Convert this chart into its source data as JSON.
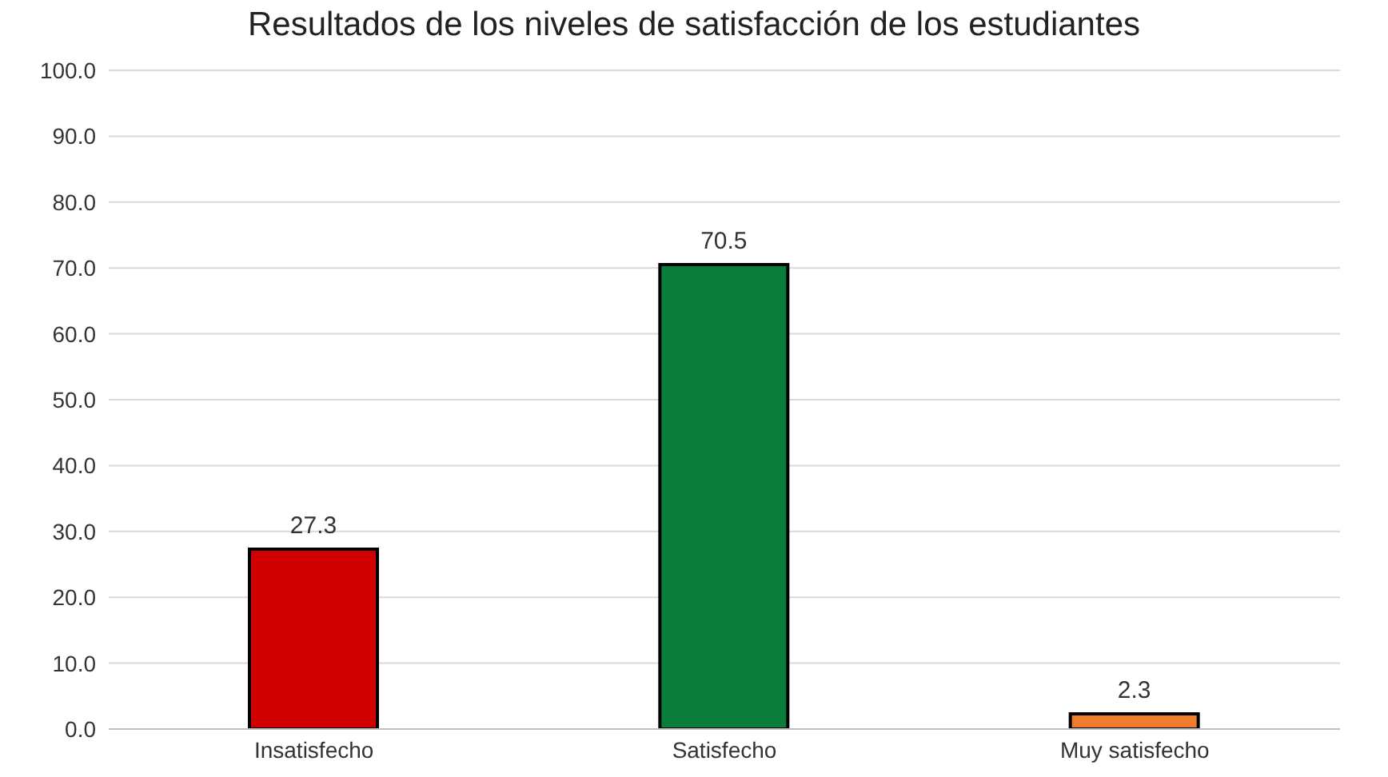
{
  "chart_data": {
    "type": "bar",
    "title": "Resultados de los niveles de satisfacción de los estudiantes",
    "categories": [
      "Insatisfecho",
      "Satisfecho",
      "Muy satisfecho"
    ],
    "values": [
      27.3,
      70.5,
      2.3
    ],
    "colors": [
      "#d10000",
      "#0a7d3b",
      "#f07d2e"
    ],
    "ylim": [
      0,
      100
    ],
    "yticks": [
      {
        "value": 0,
        "label": "0.0"
      },
      {
        "value": 10,
        "label": "10.0"
      },
      {
        "value": 20,
        "label": "20.0"
      },
      {
        "value": 30,
        "label": "30.0"
      },
      {
        "value": 40,
        "label": "40.0"
      },
      {
        "value": 50,
        "label": "50.0"
      },
      {
        "value": 60,
        "label": "60.0"
      },
      {
        "value": 70,
        "label": "70.0"
      },
      {
        "value": 80,
        "label": "80.0"
      },
      {
        "value": 90,
        "label": "90.0"
      },
      {
        "value": 100,
        "label": "100.0"
      }
    ],
    "grid": "y",
    "data_labels": true
  }
}
